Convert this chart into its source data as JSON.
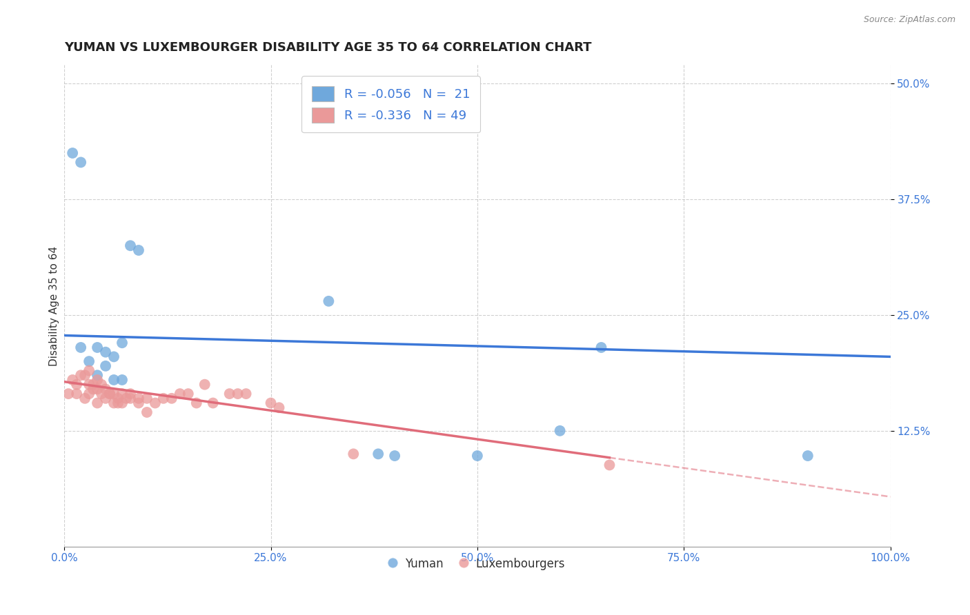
{
  "title": "YUMAN VS LUXEMBOURGER DISABILITY AGE 35 TO 64 CORRELATION CHART",
  "source_text": "Source: ZipAtlas.com",
  "xlabel": "",
  "ylabel": "Disability Age 35 to 64",
  "xlim": [
    0.0,
    1.0
  ],
  "ylim": [
    0.0,
    0.52
  ],
  "yticks": [
    0.125,
    0.25,
    0.375,
    0.5
  ],
  "ytick_labels": [
    "12.5%",
    "25.0%",
    "37.5%",
    "50.0%"
  ],
  "xticks": [
    0.0,
    0.25,
    0.5,
    0.75,
    1.0
  ],
  "xtick_labels": [
    "0.0%",
    "25.0%",
    "50.0%",
    "75.0%",
    "100.0%"
  ],
  "blue_color": "#6fa8dc",
  "pink_color": "#ea9999",
  "blue_line_color": "#3c78d8",
  "pink_line_color": "#e06c7a",
  "legend_R1": "R = -0.056",
  "legend_N1": "N =  21",
  "legend_R2": "R = -0.336",
  "legend_N2": "N = 49",
  "blue_x": [
    0.01,
    0.02,
    0.08,
    0.09,
    0.02,
    0.04,
    0.05,
    0.06,
    0.03,
    0.05,
    0.04,
    0.06,
    0.32,
    0.4,
    0.5,
    0.6,
    0.65,
    0.38,
    0.9,
    0.07,
    0.07
  ],
  "blue_y": [
    0.425,
    0.415,
    0.325,
    0.32,
    0.215,
    0.215,
    0.21,
    0.205,
    0.2,
    0.195,
    0.185,
    0.18,
    0.265,
    0.098,
    0.098,
    0.125,
    0.215,
    0.1,
    0.098,
    0.22,
    0.18
  ],
  "pink_x": [
    0.005,
    0.01,
    0.015,
    0.015,
    0.02,
    0.025,
    0.025,
    0.03,
    0.03,
    0.03,
    0.035,
    0.035,
    0.04,
    0.04,
    0.04,
    0.045,
    0.045,
    0.05,
    0.05,
    0.055,
    0.055,
    0.06,
    0.06,
    0.065,
    0.065,
    0.07,
    0.07,
    0.075,
    0.08,
    0.08,
    0.09,
    0.09,
    0.1,
    0.1,
    0.11,
    0.12,
    0.13,
    0.14,
    0.15,
    0.16,
    0.17,
    0.18,
    0.2,
    0.21,
    0.22,
    0.25,
    0.26,
    0.35,
    0.66
  ],
  "pink_y": [
    0.165,
    0.18,
    0.175,
    0.165,
    0.185,
    0.185,
    0.16,
    0.19,
    0.175,
    0.165,
    0.175,
    0.17,
    0.18,
    0.17,
    0.155,
    0.175,
    0.165,
    0.17,
    0.16,
    0.165,
    0.165,
    0.165,
    0.155,
    0.16,
    0.155,
    0.165,
    0.155,
    0.16,
    0.165,
    0.16,
    0.16,
    0.155,
    0.16,
    0.145,
    0.155,
    0.16,
    0.16,
    0.165,
    0.165,
    0.155,
    0.175,
    0.155,
    0.165,
    0.165,
    0.165,
    0.155,
    0.15,
    0.1,
    0.088
  ],
  "background_color": "#ffffff",
  "grid_color": "#bbbbbb",
  "title_fontsize": 13,
  "axis_label_fontsize": 11,
  "tick_fontsize": 11,
  "blue_line_x0": 0.0,
  "blue_line_y0": 0.228,
  "blue_line_x1": 1.0,
  "blue_line_y1": 0.205,
  "pink_line_x0": 0.0,
  "pink_line_y0": 0.178,
  "pink_line_x1": 0.66,
  "pink_line_y1": 0.096
}
